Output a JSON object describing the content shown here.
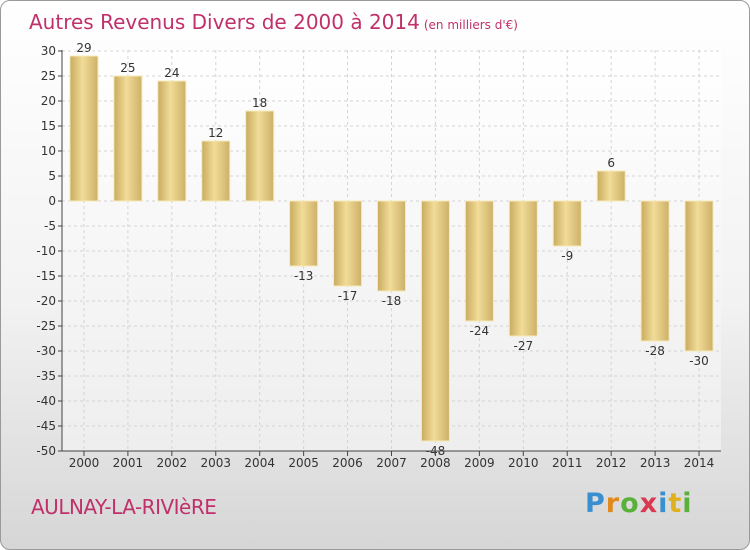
{
  "chart_data": {
    "type": "bar",
    "title": "Autres Revenus Divers de 2000 à 2014",
    "unit": "(en milliers d'€)",
    "categories": [
      "2000",
      "2001",
      "2002",
      "2003",
      "2004",
      "2005",
      "2006",
      "2007",
      "2008",
      "2009",
      "2010",
      "2011",
      "2012",
      "2013",
      "2014"
    ],
    "values": [
      29,
      25,
      24,
      12,
      18,
      -13,
      -17,
      -18,
      -48,
      -24,
      -27,
      -9,
      6,
      -28,
      -30
    ],
    "ylim": [
      -50,
      30
    ],
    "yticks": [
      30,
      25,
      20,
      15,
      10,
      5,
      0,
      -5,
      -10,
      -15,
      -20,
      -25,
      -30,
      -35,
      -40,
      -45,
      -50
    ],
    "grid": true,
    "bar_color": "#d9c07a"
  },
  "footer": {
    "commune": "AULNAY-LA-RIVIèRE",
    "logo": {
      "letters": [
        "P",
        "r",
        "o",
        "x",
        "i",
        "t",
        "i"
      ],
      "colors": [
        "#3a8fd0",
        "#e08a1e",
        "#59b03a",
        "#d93a4f",
        "#3a8fd0",
        "#e0b01e",
        "#59b03a"
      ]
    }
  }
}
